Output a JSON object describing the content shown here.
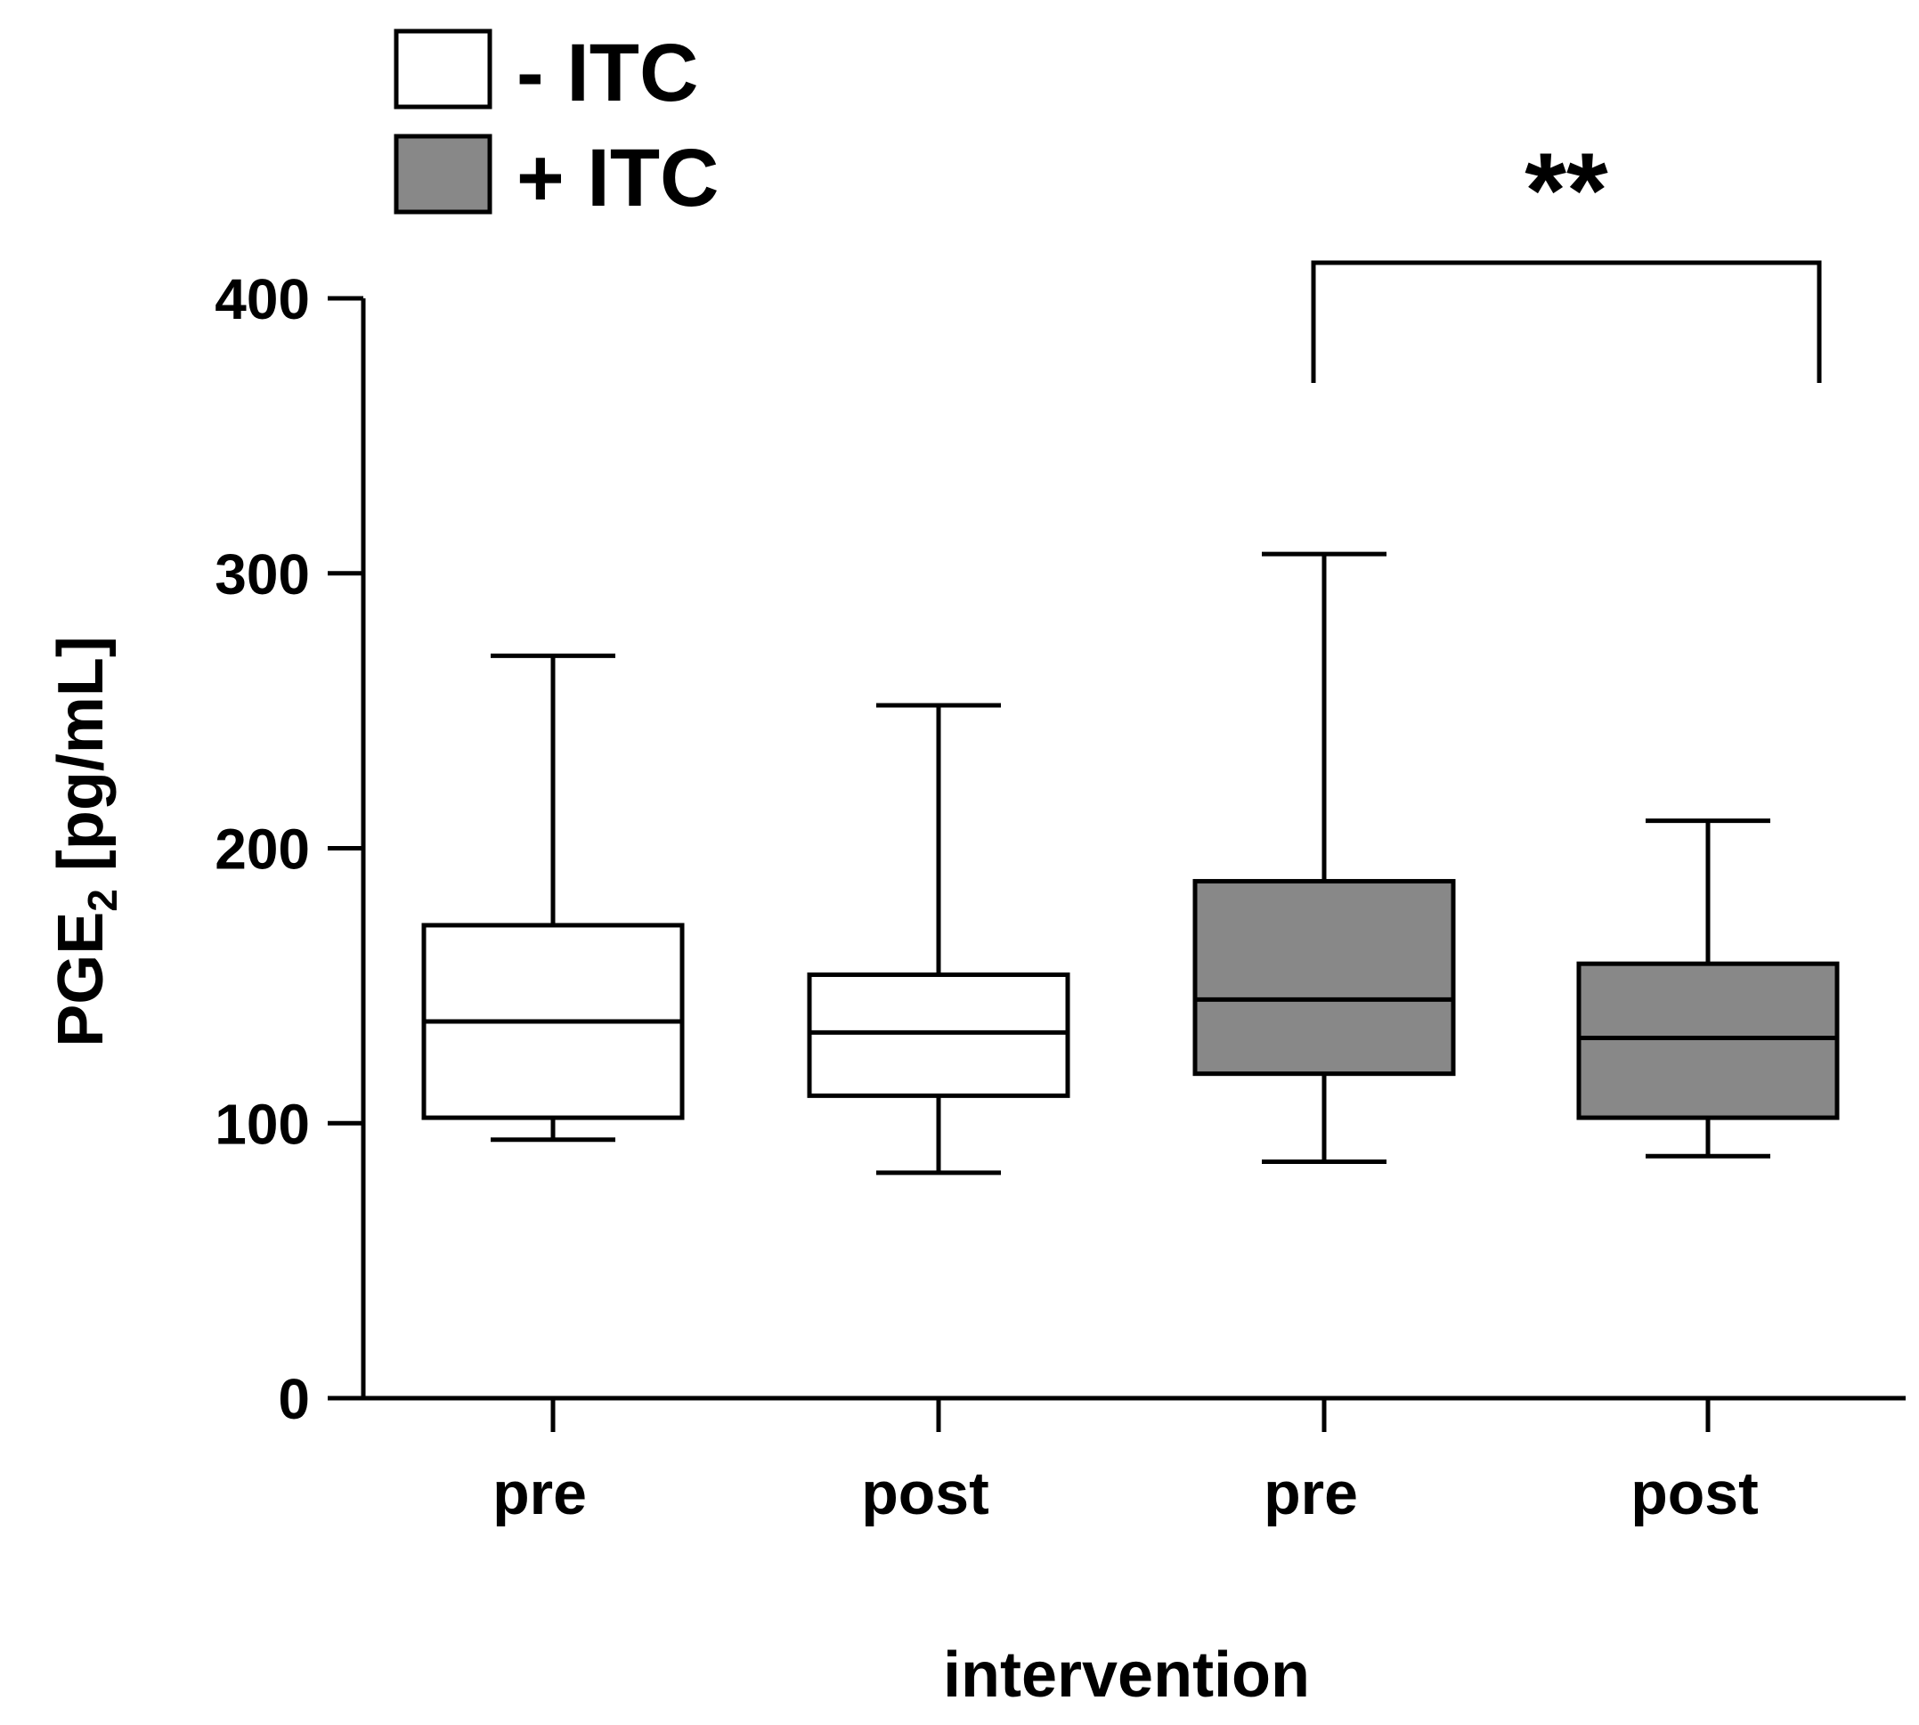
{
  "chart_data": {
    "type": "boxplot",
    "title": "",
    "xlabel": "intervention",
    "ylabel": {
      "main": "PGE",
      "sub": "2",
      "unit": " [pg/mL]"
    },
    "ylim": [
      0,
      400
    ],
    "yticks": [
      "0",
      "100",
      "200",
      "300",
      "400"
    ],
    "yticks_values": [
      0,
      100,
      200,
      300,
      400
    ],
    "categories": [
      "pre",
      "post",
      "pre",
      "post"
    ],
    "legend": [
      {
        "label": "- ITC",
        "color": "#ffffff"
      },
      {
        "label": "+ ITC",
        "color": "#888888"
      }
    ],
    "boxes": [
      {
        "category": "pre",
        "group": "- ITC",
        "color": "#ffffff",
        "min": 94,
        "q1": 102,
        "median": 137,
        "q3": 172,
        "max": 270
      },
      {
        "category": "post",
        "group": "- ITC",
        "color": "#ffffff",
        "min": 82,
        "q1": 110,
        "median": 133,
        "q3": 154,
        "max": 252
      },
      {
        "category": "pre",
        "group": "+ ITC",
        "color": "#888888",
        "min": 86,
        "q1": 118,
        "median": 145,
        "q3": 188,
        "max": 307
      },
      {
        "category": "post",
        "group": "+ ITC",
        "color": "#888888",
        "min": 88,
        "q1": 102,
        "median": 131,
        "q3": 158,
        "max": 210
      }
    ],
    "annotations": [
      {
        "text": "**",
        "from_box": 2,
        "to_box": 3
      }
    ]
  }
}
